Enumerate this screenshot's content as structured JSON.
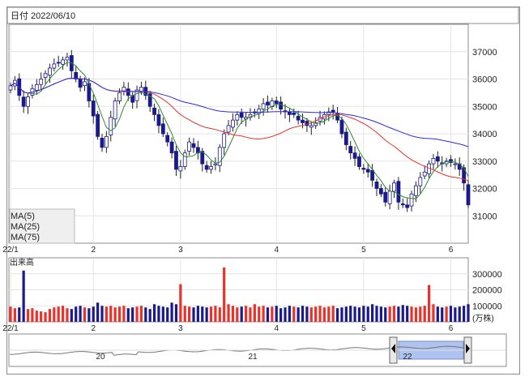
{
  "header": {
    "date_label": "日付 2022/06/10"
  },
  "price_panel": {
    "y_ticks": [
      37000,
      36000,
      35000,
      34000,
      33000,
      32000,
      31000
    ],
    "x_ticks": [
      {
        "label": "22/1",
        "i": 0
      },
      {
        "label": "2",
        "i": 19
      },
      {
        "label": "3",
        "i": 39
      },
      {
        "label": "4",
        "i": 61
      },
      {
        "label": "5",
        "i": 81
      },
      {
        "label": "6",
        "i": 101
      }
    ],
    "legend": [
      {
        "label": "MA(5)",
        "color": "#2e8b2e"
      },
      {
        "label": "MA(25)",
        "color": "#e8322a"
      },
      {
        "label": "MA(75)",
        "color": "#2a2ae8"
      }
    ],
    "up_color": "#ffffff",
    "down_color": "#1a1a8c",
    "ylim": [
      30000,
      38000
    ]
  },
  "volume_panel": {
    "title": "出来高",
    "y_ticks": [
      300000,
      200000,
      100000
    ],
    "unit": "(万株)",
    "up_color": "#e8322a",
    "down_color": "#1a1a8c",
    "x_ticks": [
      {
        "label": "22/1",
        "i": 0
      },
      {
        "label": "2",
        "i": 19
      },
      {
        "label": "3",
        "i": 39
      },
      {
        "label": "4",
        "i": 61
      },
      {
        "label": "5",
        "i": 81
      },
      {
        "label": "6",
        "i": 101
      }
    ]
  },
  "navigator": {
    "labels": [
      "20",
      "21",
      "22"
    ],
    "left_handle_icon": "chevron-left-icon",
    "right_handle_icon": "chevron-right-icon"
  },
  "chart_data": {
    "type": "candlestick",
    "title": "",
    "x_range": [
      "22/1",
      "6"
    ],
    "ylim": [
      30000,
      38000
    ],
    "closes": [
      35750,
      35950,
      35400,
      35000,
      35350,
      35650,
      35800,
      36000,
      36200,
      36400,
      36550,
      36600,
      36700,
      36800,
      36300,
      36000,
      35700,
      35900,
      35200,
      34650,
      33900,
      33500,
      33900,
      34600,
      35200,
      35500,
      35700,
      35400,
      35150,
      35600,
      35700,
      35400,
      35000,
      34700,
      34300,
      34000,
      33700,
      33300,
      32700,
      32800,
      33300,
      33700,
      33500,
      33300,
      32900,
      32700,
      32800,
      32900,
      33500,
      34000,
      34300,
      34500,
      34700,
      34600,
      34600,
      34700,
      34800,
      34900,
      35100,
      35050,
      35200,
      35100,
      34900,
      34800,
      34700,
      34700,
      34500,
      34400,
      34300,
      34300,
      34400,
      34600,
      34700,
      34800,
      34800,
      34500,
      34000,
      33600,
      33300,
      33100,
      32800,
      32700,
      32600,
      32300,
      32000,
      31800,
      31500,
      31900,
      32200,
      31500,
      31400,
      31300,
      31800,
      32100,
      32400,
      32600,
      32900,
      33100,
      33000,
      32900,
      33000,
      32950,
      32900,
      32700,
      32200,
      31400
    ],
    "volumes": [
      95000,
      85000,
      90000,
      320000,
      80000,
      85000,
      70000,
      65000,
      60000,
      80000,
      90000,
      95000,
      100000,
      85000,
      80000,
      95000,
      100000,
      90000,
      85000,
      95000,
      120000,
      100000,
      95000,
      100000,
      90000,
      95000,
      100000,
      85000,
      90000,
      95000,
      100000,
      90000,
      80000,
      110000,
      100000,
      95000,
      90000,
      120000,
      110000,
      235000,
      100000,
      95000,
      90000,
      100000,
      95000,
      90000,
      95000,
      100000,
      90000,
      340000,
      110000,
      100000,
      90000,
      95000,
      100000,
      90000,
      110000,
      95000,
      100000,
      90000,
      95000,
      100000,
      85000,
      90000,
      100000,
      95000,
      90000,
      100000,
      95000,
      90000,
      95000,
      100000,
      90000,
      95000,
      100000,
      85000,
      90000,
      95000,
      100000,
      95000,
      90000,
      100000,
      95000,
      110000,
      100000,
      95000,
      90000,
      95000,
      100000,
      95000,
      105000,
      100000,
      95000,
      90000,
      95000,
      100000,
      230000,
      110000,
      95000,
      90000,
      95000,
      100000,
      90000,
      95000,
      100000,
      110000
    ]
  }
}
